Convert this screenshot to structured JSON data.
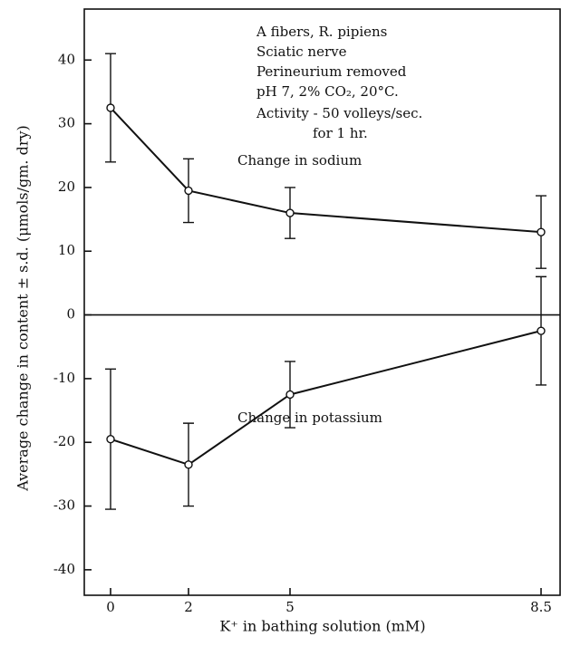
{
  "chart_data": {
    "type": "line",
    "xlabel": "K⁺ in bathing solution (mM)",
    "ylabel": "Average change in content ± s.d. (μmols/gm. dry)",
    "categories": [
      "0",
      "2",
      "5",
      "8.5"
    ],
    "series": [
      {
        "name": "Change in sodium",
        "color": "#111111",
        "values": [
          32.5,
          19.5,
          16,
          13
        ],
        "errors": [
          8.5,
          5,
          4,
          5.7
        ]
      },
      {
        "name": "Change in potassium",
        "color": "#111111",
        "values": [
          -19.5,
          -23.5,
          -12.5,
          -2.5
        ],
        "errors": [
          11,
          6.5,
          5.2,
          8.5
        ]
      }
    ],
    "ylim": [
      -44,
      48
    ],
    "yticks": [
      40,
      30,
      20,
      10,
      0,
      -10,
      -20,
      -30,
      -40
    ],
    "annotations": [
      "A fibers, R. pipiens",
      "Sciatic nerve",
      "Perineurium removed",
      "pH 7, 2% CO₂, 20°C.",
      "Activity - 50 volleys/sec.",
      "for 1 hr."
    ]
  }
}
